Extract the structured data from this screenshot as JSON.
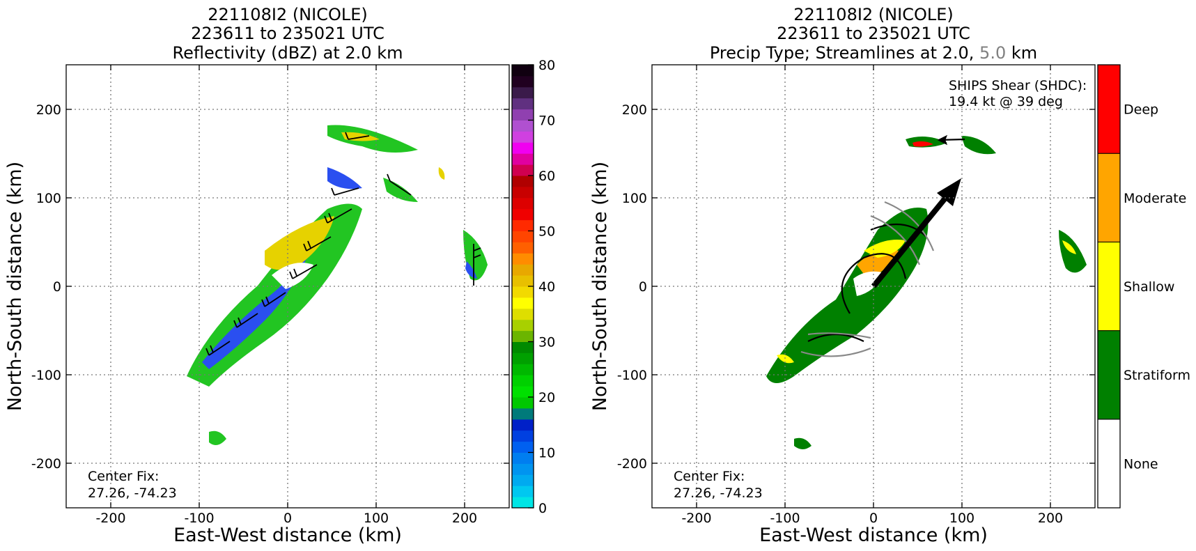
{
  "panels": [
    {
      "title": [
        "221108I2 (NICOLE)",
        "223611 to 235021 UTC",
        "Reflectivity (dBZ) at 2.0 km"
      ],
      "xlabel": "East-West distance (km)",
      "ylabel": "North-South distance (km)",
      "note": [
        "Center Fix:",
        "27.26, -74.23"
      ]
    },
    {
      "title": [
        "221108I2 (NICOLE)",
        "223611 to 235021 UTC"
      ],
      "title3": {
        "pre": "Precip Type; Streamlines at 2.0,",
        "mid": "5.0",
        "post": "km",
        "mid_color": "#808080"
      },
      "xlabel": "East-West distance (km)",
      "ylabel": "North-South distance (km)",
      "note": [
        "Center Fix:",
        "27.26, -74.23"
      ],
      "shear_text": [
        "SHIPS Shear (SHDC):",
        "19.4 kt @ 39 deg"
      ]
    }
  ],
  "colorbar_dbz": {
    "ticks": [
      "0",
      "10",
      "20",
      "30",
      "40",
      "50",
      "60",
      "70",
      "80"
    ],
    "colors": [
      "#00e5e5",
      "#00c8f0",
      "#00aaf0",
      "#0094f0",
      "#007ef0",
      "#0060f0",
      "#0040e0",
      "#0020c8",
      "#007a7a",
      "#00c800",
      "#00e000",
      "#00d000",
      "#00b800",
      "#00a000",
      "#008a00",
      "#6bb500",
      "#a8d000",
      "#dede00",
      "#ffff00",
      "#f2da00",
      "#e8c000",
      "#e8a800",
      "#ff8c00",
      "#ff6000",
      "#ff4500",
      "#ff2a00",
      "#f00000",
      "#dd0000",
      "#c80000",
      "#b00000",
      "#d00050",
      "#e000a0",
      "#f000f0",
      "#d040e0",
      "#b050d0",
      "#9040b0",
      "#603080",
      "#3a1a4a",
      "#200020",
      "#100010"
    ]
  },
  "colorbar_precip": {
    "categories": [
      "None",
      "Stratiform",
      "Shallow",
      "Moderate",
      "Deep"
    ],
    "colors": [
      "#ffffff",
      "#008000",
      "#ffff00",
      "#ffa500",
      "#ff0000"
    ]
  },
  "chart_data": [
    {
      "type": "heatmap",
      "title": "221108I2 (NICOLE) 223611 to 235021 UTC Reflectivity (dBZ) at 2.0 km",
      "xlabel": "East-West distance (km)",
      "ylabel": "North-South distance (km)",
      "xlim": [
        -250,
        250
      ],
      "ylim": [
        -250,
        250
      ],
      "xticks": [
        -200,
        -100,
        0,
        100,
        200
      ],
      "yticks": [
        -200,
        -100,
        0,
        100,
        200
      ],
      "colorbar_label_ticks": [
        0,
        10,
        20,
        30,
        40,
        50,
        60,
        70,
        80
      ],
      "grid": true,
      "center_fix": [
        27.26,
        -74.23
      ]
    },
    {
      "type": "heatmap",
      "title": "221108I2 (NICOLE) 223611 to 235021 UTC Precip Type; Streamlines at 2.0, 5.0 km",
      "xlabel": "East-West distance (km)",
      "ylabel": "North-South distance (km)",
      "xlim": [
        -250,
        250
      ],
      "ylim": [
        -250,
        250
      ],
      "xticks": [
        -200,
        -100,
        0,
        100,
        200
      ],
      "yticks": [
        -200,
        -100,
        0,
        100,
        200
      ],
      "categories": [
        "None",
        "Stratiform",
        "Shallow",
        "Moderate",
        "Deep"
      ],
      "grid": true,
      "shear": {
        "speed_kt": 19.4,
        "direction_deg": 39
      },
      "center_fix": [
        27.26,
        -74.23
      ]
    }
  ]
}
